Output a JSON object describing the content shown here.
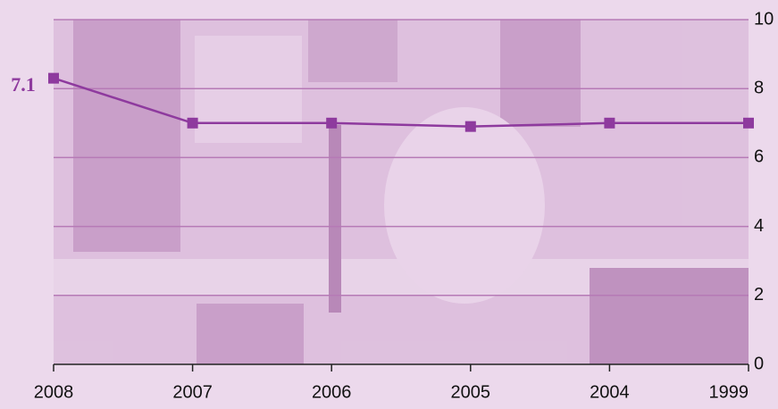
{
  "chart_data": {
    "type": "line",
    "annotation": "7.1",
    "categories": [
      "2008",
      "2007",
      "2006",
      "2005",
      "2004",
      "1999"
    ],
    "values": [
      8.3,
      7.0,
      7.0,
      6.9,
      7.0,
      7.0
    ],
    "color": "#8e3a9e",
    "ylim": [
      0,
      10
    ],
    "yticks": [
      0,
      2,
      4,
      6,
      8,
      10
    ],
    "grid": true
  }
}
